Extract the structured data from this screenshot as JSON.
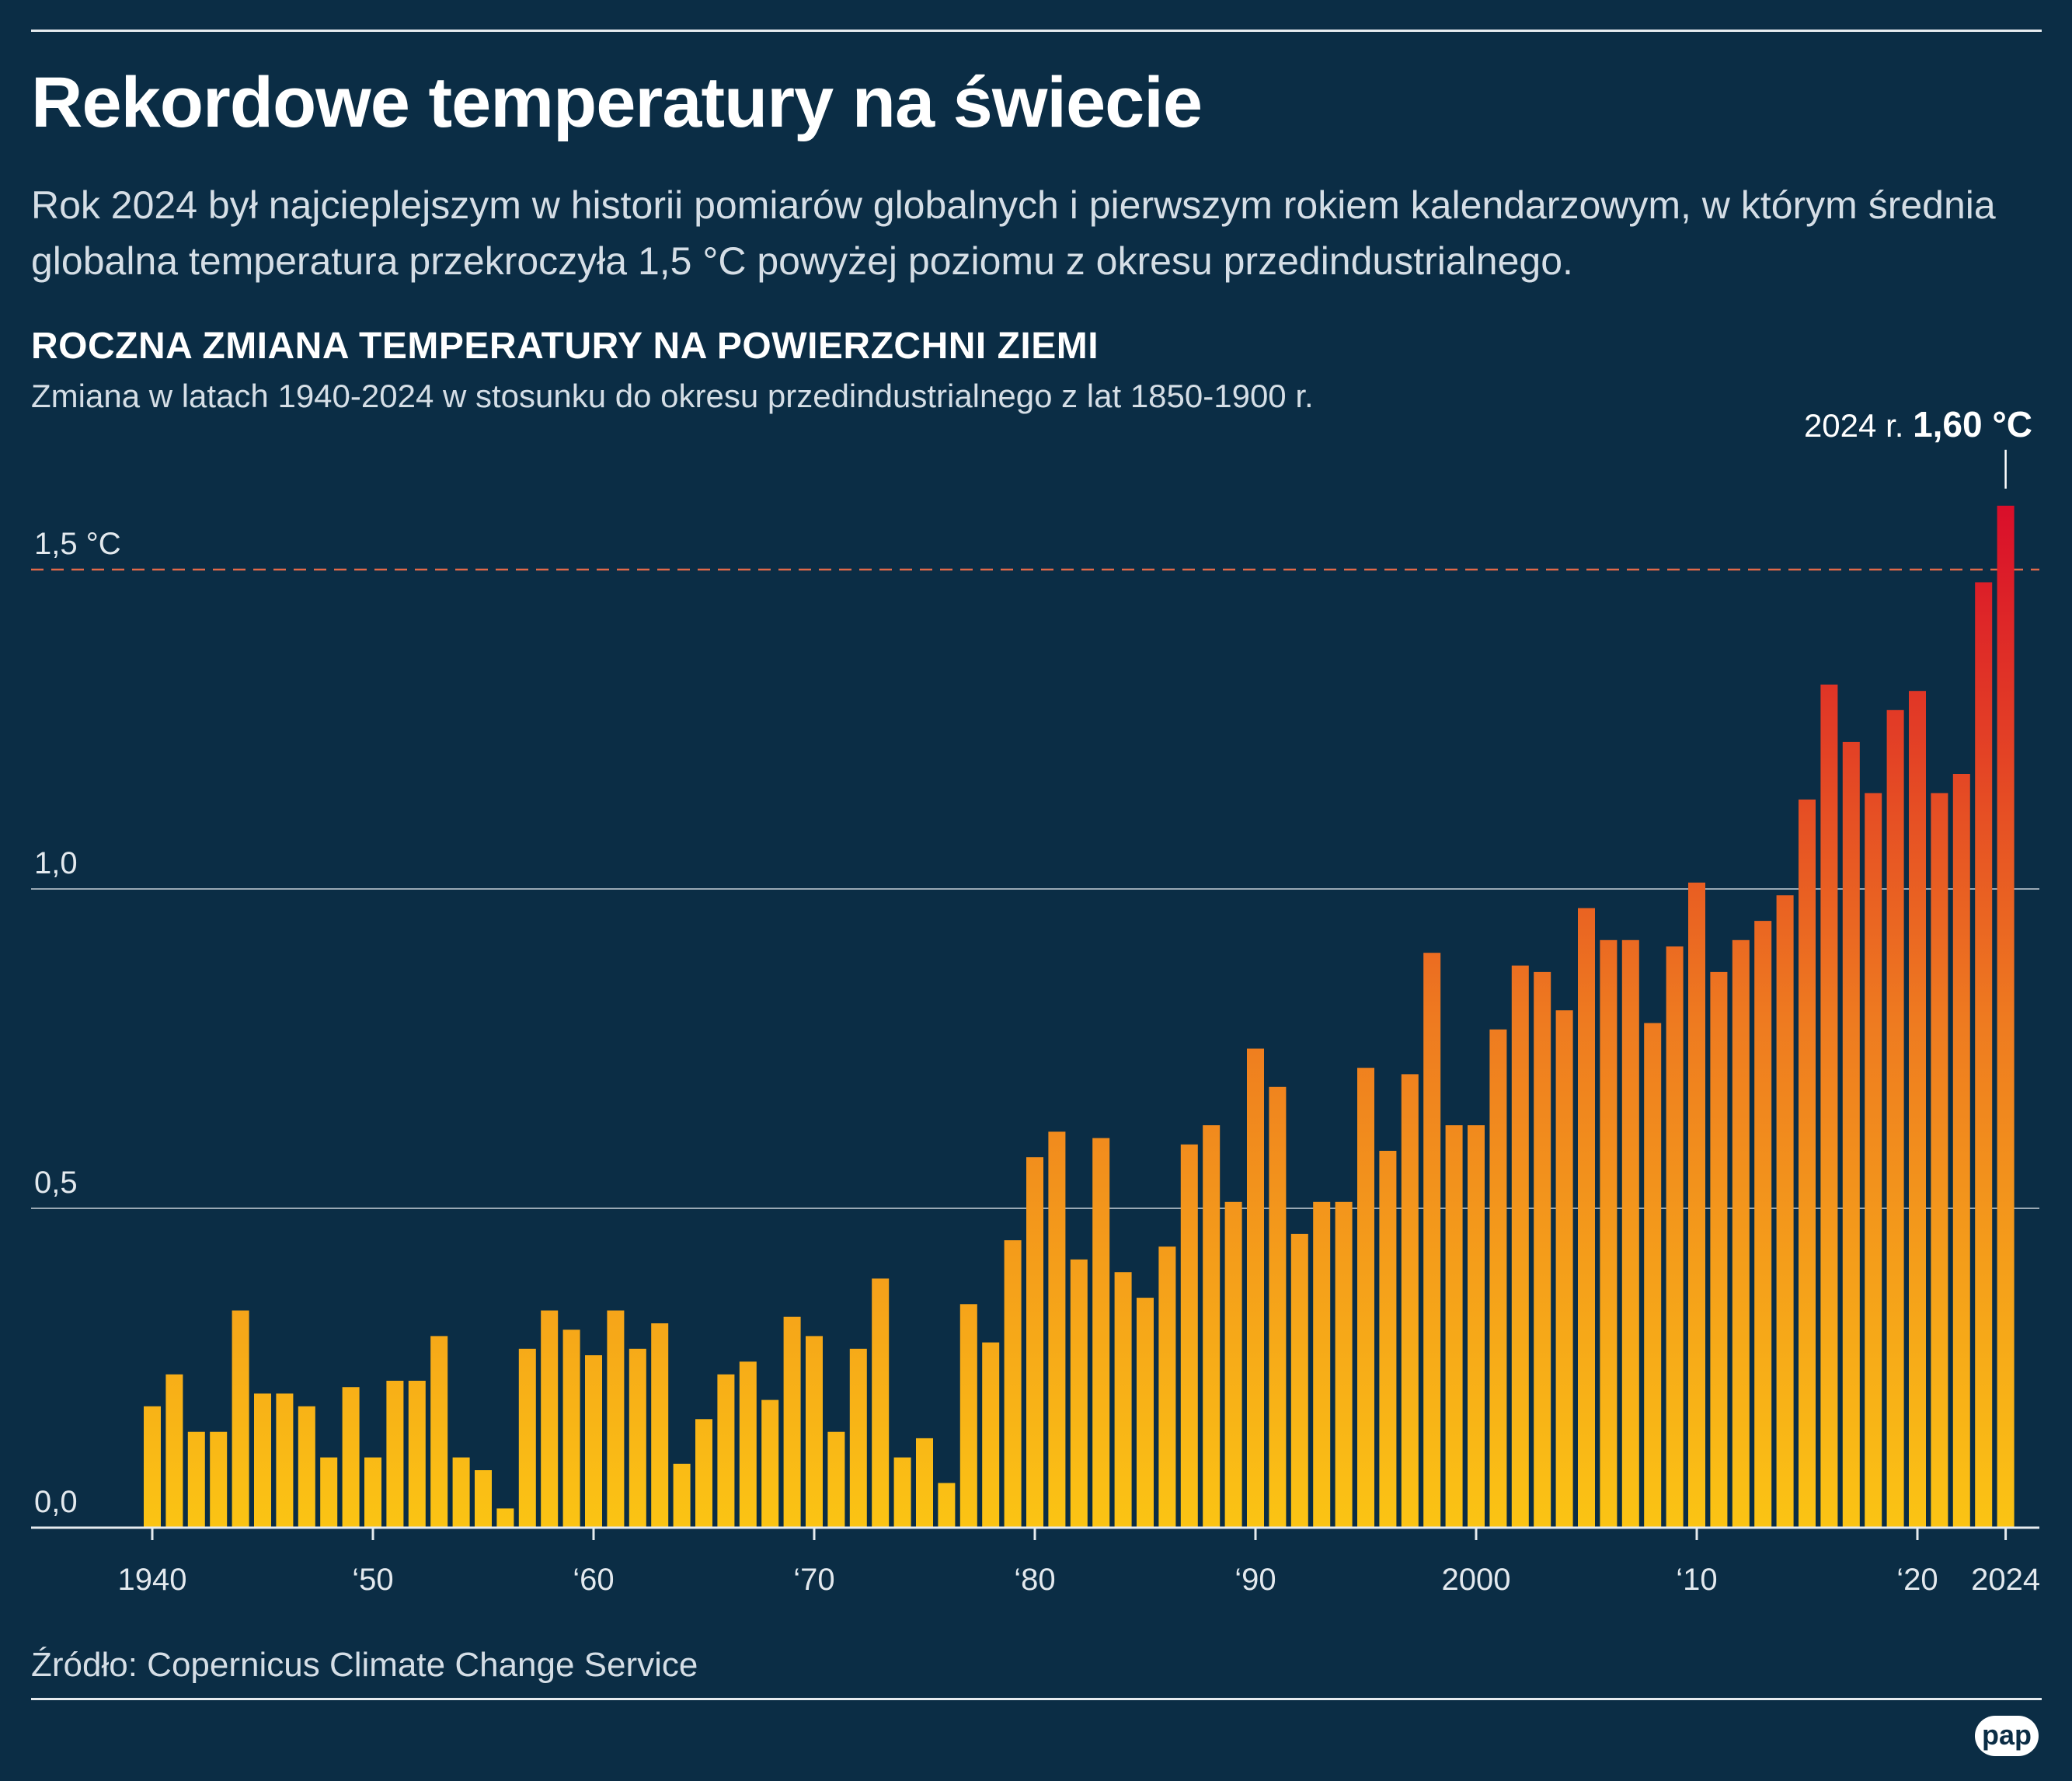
{
  "header": {
    "title": "Rekordowe temperatury na świecie",
    "lead": "Rok 2024 był najcieplejszym w historii pomiarów globalnych i pierwszym rokiem kalendarzowym, w którym średnia globalna temperatura przekroczyła 1,5 °C powyżej poziomu z okresu przedindustrialnego."
  },
  "footer": {
    "source": "Źródło: Copernicus Climate Change Service",
    "logo": "pap"
  },
  "colors": {
    "background": "#0b2d45",
    "bar_low": "#fbc414",
    "bar_mid": "#ee7a20",
    "bar_high": "#d90f2a",
    "threshold_line": "#e0694a",
    "grid": "#c9d2da"
  },
  "chart_data": {
    "type": "bar",
    "title": "ROCZNA ZMIANA TEMPERATURY NA POWIERZCHNI ZIEMI",
    "subtitle": "Zmiana w latach 1940-2024 w stosunku do okresu przedindustrialnego z lat 1850-1900 r.",
    "xlabel": "",
    "ylabel": "°C",
    "ylim": [
      0,
      1.6
    ],
    "grid": true,
    "y_ticks": [
      {
        "value": 0,
        "label": "0,0"
      },
      {
        "value": 0.5,
        "label": "0,5"
      },
      {
        "value": 1.0,
        "label": "1,0"
      },
      {
        "value": 1.5,
        "label": "1,5 °C"
      }
    ],
    "threshold": {
      "value": 1.5,
      "style": "dashed"
    },
    "x_ticks": [
      {
        "year": 1940,
        "label": "1940"
      },
      {
        "year": 1950,
        "label": "‘50"
      },
      {
        "year": 1960,
        "label": "‘60"
      },
      {
        "year": 1970,
        "label": "‘70"
      },
      {
        "year": 1980,
        "label": "‘80"
      },
      {
        "year": 1990,
        "label": "‘90"
      },
      {
        "year": 2000,
        "label": "2000"
      },
      {
        "year": 2010,
        "label": "‘10"
      },
      {
        "year": 2020,
        "label": "‘20"
      },
      {
        "year": 2024,
        "label": "2024"
      }
    ],
    "annotation": {
      "year": 2024,
      "label": "2024 r.",
      "value_label": "1,60 °C"
    },
    "x": [
      1940,
      1941,
      1942,
      1943,
      1944,
      1945,
      1946,
      1947,
      1948,
      1949,
      1950,
      1951,
      1952,
      1953,
      1954,
      1955,
      1956,
      1957,
      1958,
      1959,
      1960,
      1961,
      1962,
      1963,
      1964,
      1965,
      1966,
      1967,
      1968,
      1969,
      1970,
      1971,
      1972,
      1973,
      1974,
      1975,
      1976,
      1977,
      1978,
      1979,
      1980,
      1981,
      1982,
      1983,
      1984,
      1985,
      1986,
      1987,
      1988,
      1989,
      1990,
      1991,
      1992,
      1993,
      1994,
      1995,
      1996,
      1997,
      1998,
      1999,
      2000,
      2001,
      2002,
      2003,
      2004,
      2005,
      2006,
      2007,
      2008,
      2009,
      2010,
      2011,
      2012,
      2013,
      2014,
      2015,
      2016,
      2017,
      2018,
      2019,
      2020,
      2021,
      2022,
      2023,
      2024
    ],
    "values": [
      0.19,
      0.24,
      0.15,
      0.15,
      0.34,
      0.21,
      0.21,
      0.19,
      0.11,
      0.22,
      0.11,
      0.23,
      0.23,
      0.3,
      0.11,
      0.09,
      0.03,
      0.28,
      0.34,
      0.31,
      0.27,
      0.34,
      0.28,
      0.32,
      0.1,
      0.17,
      0.24,
      0.26,
      0.2,
      0.33,
      0.3,
      0.15,
      0.28,
      0.39,
      0.11,
      0.14,
      0.07,
      0.35,
      0.29,
      0.45,
      0.58,
      0.62,
      0.42,
      0.61,
      0.4,
      0.36,
      0.44,
      0.6,
      0.63,
      0.51,
      0.75,
      0.69,
      0.46,
      0.51,
      0.51,
      0.72,
      0.59,
      0.71,
      0.9,
      0.63,
      0.63,
      0.78,
      0.88,
      0.87,
      0.81,
      0.97,
      0.92,
      0.92,
      0.79,
      0.91,
      1.01,
      0.87,
      0.92,
      0.95,
      0.99,
      1.14,
      1.32,
      1.23,
      1.15,
      1.28,
      1.31,
      1.15,
      1.18,
      1.48,
      1.6
    ]
  }
}
